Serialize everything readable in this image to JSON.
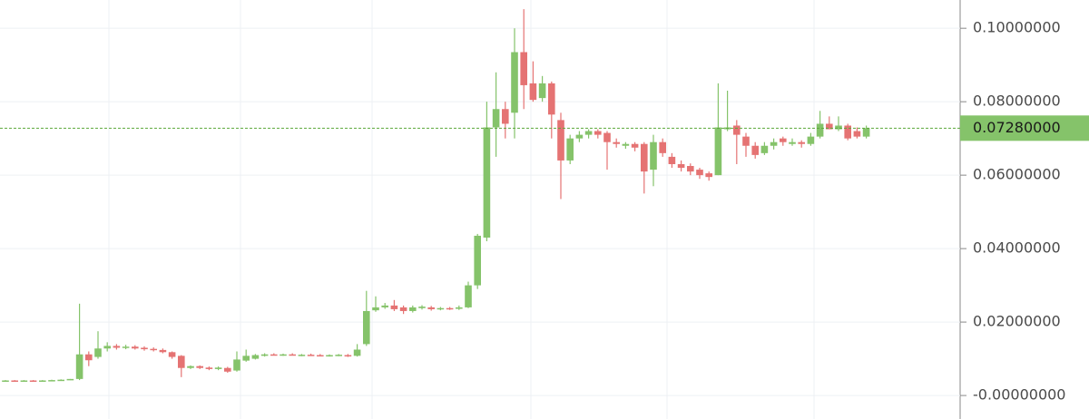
{
  "chart_data": {
    "type": "candlestick",
    "open": [
      0.004,
      0.0041,
      0.004,
      0.0041,
      0.004,
      0.0041,
      0.0042,
      0.0043,
      0.0045,
      0.0112,
      0.0105,
      0.0128,
      0.0135,
      0.013,
      0.0133,
      0.013,
      0.0127,
      0.0124,
      0.0118,
      0.0108,
      0.0075,
      0.008,
      0.0076,
      0.0072,
      0.0075,
      0.0068,
      0.0095,
      0.01,
      0.0108,
      0.0112,
      0.0111,
      0.0112,
      0.011,
      0.0111,
      0.011,
      0.0109,
      0.011,
      0.011,
      0.0108,
      0.014,
      0.0232,
      0.024,
      0.0245,
      0.024,
      0.023,
      0.0238,
      0.024,
      0.0235,
      0.0238,
      0.0236,
      0.024,
      0.03,
      0.043,
      0.073,
      0.078,
      0.077,
      0.0935,
      0.085,
      0.081,
      0.085,
      0.075,
      0.064,
      0.07,
      0.071,
      0.072,
      0.0715,
      0.069,
      0.068,
      0.0685,
      0.0685,
      0.0615,
      0.069,
      0.065,
      0.063,
      0.0625,
      0.0615,
      0.0605,
      0.06,
      0.0725,
      0.0735,
      0.0705,
      0.068,
      0.066,
      0.068,
      0.07,
      0.0685,
      0.069,
      0.0685,
      0.0705,
      0.074,
      0.0725,
      0.0735,
      0.072,
      0.0705
    ],
    "high": [
      0.0042,
      0.0042,
      0.0042,
      0.0042,
      0.0042,
      0.0043,
      0.0044,
      0.0045,
      0.025,
      0.012,
      0.0175,
      0.0145,
      0.014,
      0.0138,
      0.0137,
      0.0134,
      0.0131,
      0.0128,
      0.012,
      0.011,
      0.0082,
      0.0082,
      0.0079,
      0.0079,
      0.0078,
      0.012,
      0.0125,
      0.0113,
      0.0115,
      0.0115,
      0.0114,
      0.0115,
      0.0113,
      0.0114,
      0.0113,
      0.0112,
      0.0113,
      0.0113,
      0.014,
      0.0285,
      0.027,
      0.0252,
      0.026,
      0.0245,
      0.0245,
      0.0246,
      0.0244,
      0.0241,
      0.0241,
      0.0245,
      0.031,
      0.044,
      0.08,
      0.088,
      0.08,
      0.1,
      0.1052,
      0.091,
      0.087,
      0.0855,
      0.077,
      0.071,
      0.072,
      0.0725,
      0.0725,
      0.072,
      0.07,
      0.069,
      0.069,
      0.069,
      0.071,
      0.07,
      0.066,
      0.064,
      0.0632,
      0.062,
      0.061,
      0.085,
      0.083,
      0.075,
      0.0715,
      0.069,
      0.069,
      0.07,
      0.0705,
      0.07,
      0.0695,
      0.0715,
      0.0775,
      0.076,
      0.076,
      0.074,
      0.073,
      0.0735
    ],
    "low": [
      0.0039,
      0.0039,
      0.0039,
      0.0039,
      0.0039,
      0.004,
      0.0041,
      0.0042,
      0.0042,
      0.008,
      0.01,
      0.012,
      0.0125,
      0.0126,
      0.0125,
      0.0122,
      0.012,
      0.0115,
      0.01,
      0.005,
      0.0072,
      0.0072,
      0.0069,
      0.0069,
      0.0062,
      0.0065,
      0.0092,
      0.0098,
      0.0106,
      0.0109,
      0.0108,
      0.0109,
      0.0107,
      0.0108,
      0.0107,
      0.0106,
      0.0107,
      0.0105,
      0.0106,
      0.0135,
      0.0228,
      0.0236,
      0.023,
      0.0222,
      0.0226,
      0.0234,
      0.0231,
      0.0232,
      0.0233,
      0.0233,
      0.0238,
      0.029,
      0.042,
      0.065,
      0.07,
      0.07,
      0.078,
      0.08,
      0.08,
      0.07,
      0.0535,
      0.063,
      0.069,
      0.07,
      0.07,
      0.0615,
      0.0675,
      0.0672,
      0.0665,
      0.055,
      0.057,
      0.065,
      0.062,
      0.061,
      0.06,
      0.059,
      0.0585,
      0.06,
      0.072,
      0.063,
      0.065,
      0.0645,
      0.0655,
      0.067,
      0.068,
      0.068,
      0.0675,
      0.068,
      0.07,
      0.0725,
      0.072,
      0.0695,
      0.07,
      0.07
    ],
    "close": [
      0.0041,
      0.004,
      0.0041,
      0.004,
      0.0041,
      0.0042,
      0.0043,
      0.0045,
      0.0112,
      0.0096,
      0.0128,
      0.0135,
      0.013,
      0.0133,
      0.0128,
      0.0126,
      0.0124,
      0.0118,
      0.0105,
      0.0075,
      0.008,
      0.0075,
      0.0072,
      0.0076,
      0.0065,
      0.0098,
      0.0108,
      0.011,
      0.0112,
      0.0111,
      0.0112,
      0.011,
      0.0111,
      0.011,
      0.0109,
      0.011,
      0.0111,
      0.0108,
      0.0125,
      0.023,
      0.024,
      0.0245,
      0.0235,
      0.023,
      0.024,
      0.0242,
      0.0235,
      0.0238,
      0.0236,
      0.024,
      0.03,
      0.0435,
      0.073,
      0.078,
      0.074,
      0.0935,
      0.0845,
      0.0805,
      0.085,
      0.0765,
      0.064,
      0.07,
      0.071,
      0.072,
      0.071,
      0.069,
      0.0685,
      0.0685,
      0.0675,
      0.061,
      0.069,
      0.066,
      0.063,
      0.062,
      0.061,
      0.06,
      0.0595,
      0.073,
      0.073,
      0.071,
      0.068,
      0.0655,
      0.068,
      0.069,
      0.069,
      0.069,
      0.0685,
      0.0705,
      0.074,
      0.0725,
      0.0735,
      0.07,
      0.0705,
      0.0728
    ],
    "up_color": "#85c36a",
    "down_color": "#e57373",
    "ylim": [
      -0.0064,
      0.1077
    ],
    "yticks": [
      {
        "value": 0,
        "label": "-0.00000000"
      },
      {
        "value": 0.02,
        "label": "0.02000000"
      },
      {
        "value": 0.04,
        "label": "0.04000000"
      },
      {
        "value": 0.06,
        "label": "0.06000000"
      },
      {
        "value": 0.08,
        "label": "0.08000000"
      },
      {
        "value": 0.1,
        "label": "0.10000000"
      }
    ],
    "last_price": {
      "value": 0.0728,
      "label": "0.07280000"
    },
    "grid": true
  }
}
